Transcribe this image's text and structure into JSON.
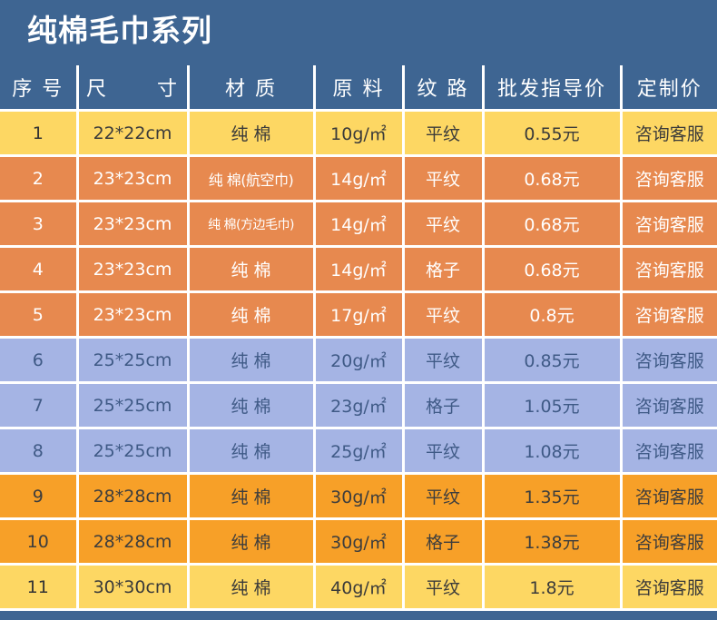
{
  "title": "纯棉毛巾系列",
  "headers": {
    "index": "序 号",
    "size": "尺      寸",
    "material": "材 质",
    "raw": "原 料",
    "pattern": "纹 路",
    "wholesale": "批发指导价",
    "custom": "定制价"
  },
  "colors": {
    "header_bg": "#3e6592",
    "row_yellow": "#fdd763",
    "row_salmon": "#e7894f",
    "row_lavender": "#a5b4e4",
    "row_orange": "#f7a028"
  },
  "rows": [
    {
      "index": "1",
      "size": "22*22cm",
      "material": "纯 棉",
      "weight": "10g/㎡",
      "pattern": "平纹",
      "price": "0.55元",
      "custom": "咨询客服"
    },
    {
      "index": "2",
      "size": "23*23cm",
      "material": "纯 棉(航空巾)",
      "weight": "14g/㎡",
      "pattern": "平纹",
      "price": "0.68元",
      "custom": "咨询客服"
    },
    {
      "index": "3",
      "size": "23*23cm",
      "material": "纯 棉(方边毛巾)",
      "weight": "14g/㎡",
      "pattern": "平纹",
      "price": "0.68元",
      "custom": "咨询客服"
    },
    {
      "index": "4",
      "size": "23*23cm",
      "material": "纯 棉",
      "weight": "14g/㎡",
      "pattern": "格子",
      "price": "0.68元",
      "custom": "咨询客服"
    },
    {
      "index": "5",
      "size": "23*23cm",
      "material": "纯 棉",
      "weight": "17g/㎡",
      "pattern": "平纹",
      "price": "0.8元",
      "custom": "咨询客服"
    },
    {
      "index": "6",
      "size": "25*25cm",
      "material": "纯 棉",
      "weight": "20g/㎡",
      "pattern": "平纹",
      "price": "0.85元",
      "custom": "咨询客服"
    },
    {
      "index": "7",
      "size": "25*25cm",
      "material": "纯 棉",
      "weight": "23g/㎡",
      "pattern": "格子",
      "price": "1.05元",
      "custom": "咨询客服"
    },
    {
      "index": "8",
      "size": "25*25cm",
      "material": "纯 棉",
      "weight": "25g/㎡",
      "pattern": "平纹",
      "price": "1.08元",
      "custom": "咨询客服"
    },
    {
      "index": "9",
      "size": "28*28cm",
      "material": "纯 棉",
      "weight": "30g/㎡",
      "pattern": "平纹",
      "price": "1.35元",
      "custom": "咨询客服"
    },
    {
      "index": "10",
      "size": "28*28cm",
      "material": "纯 棉",
      "weight": "30g/㎡",
      "pattern": "格子",
      "price": "1.38元",
      "custom": "咨询客服"
    },
    {
      "index": "11",
      "size": "30*30cm",
      "material": "纯 棉",
      "weight": "40g/㎡",
      "pattern": "平纹",
      "price": "1.8元",
      "custom": "咨询客服"
    }
  ]
}
